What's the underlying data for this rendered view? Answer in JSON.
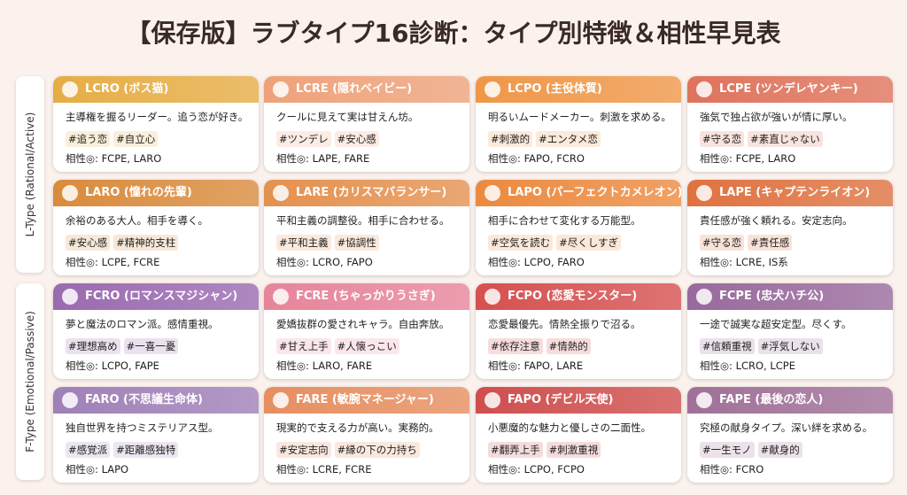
{
  "title": "【保存版】ラブタイプ16診断：タイプ別特徴＆相性早見表",
  "groups": [
    {
      "label": "L-Type (Rational/Active)"
    },
    {
      "label": "F-Type (Emotional/Passive)"
    }
  ],
  "cards": [
    {
      "header": "LCRO (ボス猫)",
      "description": "主導権を握るリーダー。追う恋が好き。",
      "tags": [
        "#追う恋",
        "#自立心"
      ],
      "compat": "相性◎: FCPE, LARO",
      "color": "#e6ad45"
    },
    {
      "header": "LCRE (隠れベイビー)",
      "description": "クールに見えて実は甘えん坊。",
      "tags": [
        "#ツンデレ",
        "#安心感"
      ],
      "compat": "相性◎: LAPE, FARE",
      "color": "#eea27a"
    },
    {
      "header": "LCPO (主役体質)",
      "description": "明るいムードメーカー。刺激を求める。",
      "tags": [
        "#刺激的",
        "#エンタメ恋"
      ],
      "compat": "相性◎: FAPO, FCRO",
      "color": "#ef9748"
    },
    {
      "header": "LCPE (ツンデレヤンキー)",
      "description": "強気で独占欲が強いが情に厚い。",
      "tags": [
        "#守る恋",
        "#素直じゃない"
      ],
      "compat": "相性◎: FCPE, LARO",
      "color": "#df735c"
    },
    {
      "header": "LARO (憧れの先輩)",
      "description": "余裕のある大人。相手を導く。",
      "tags": [
        "#安心感",
        "#精神的支柱"
      ],
      "compat": "相性◎: LCPE, FCRE",
      "color": "#d98b3c"
    },
    {
      "header": "LARE (カリスマバランサー)",
      "description": "平和主義の調整役。相手に合わせる。",
      "tags": [
        "#平和主義",
        "#協調性"
      ],
      "compat": "相性◎: LCRO, FAPO",
      "color": "#e4914f"
    },
    {
      "header": "LAPO (パーフェクトカメレオン)",
      "description": "相手に合わせて変化する万能型。",
      "tags": [
        "#空気を読む",
        "#尽くしすぎ"
      ],
      "compat": "相性◎: LCPO, FARO",
      "color": "#ec8a3f"
    },
    {
      "header": "LAPE (キャプテンライオン)",
      "description": "責任感が強く頼れる。安定志向。",
      "tags": [
        "#守る恋",
        "#責任感"
      ],
      "compat": "相性◎: LCRE, IS系",
      "color": "#df7240"
    },
    {
      "header": "FCRO (ロマンスマジシャン)",
      "description": "夢と魔法のロマン派。感情重視。",
      "tags": [
        "#理想高め",
        "#一喜一憂"
      ],
      "compat": "相性◎: LCPO, FAPE",
      "color": "#9a6ab0"
    },
    {
      "header": "FCRE (ちゃっかりうさぎ)",
      "description": "愛嬌抜群の愛されキャラ。自由奔放。",
      "tags": [
        "#甘え上手",
        "#人懐っこい"
      ],
      "compat": "相性◎: LARO, FARE",
      "color": "#e7849a"
    },
    {
      "header": "FCPO (恋愛モンスター)",
      "description": "恋愛最優先。情熱全振りで沼る。",
      "tags": [
        "#依存注意",
        "#情熱的"
      ],
      "compat": "相性◎: FAPO, LARE",
      "color": "#d65050"
    },
    {
      "header": "FCPE (忠犬ハチ公)",
      "description": "一途で誠実な超安定型。尽くす。",
      "tags": [
        "#信頼重視",
        "#浮気しない"
      ],
      "compat": "相性◎: LCRO, LCPE",
      "color": "#986a9c"
    },
    {
      "header": "FARO (不思議生命体)",
      "description": "独自世界を持つミステリアス型。",
      "tags": [
        "#感覚派",
        "#距離感独特"
      ],
      "compat": "相性◎: LAPO",
      "color": "#9f80b8"
    },
    {
      "header": "FARE (敏腕マネージャー)",
      "description": "現実的で支える力が高い。実務的。",
      "tags": [
        "#安定志向",
        "#縁の下の力持ち"
      ],
      "compat": "相性◎: LCRE, FCRE",
      "color": "#e68e60"
    },
    {
      "header": "FAPO (デビル天使)",
      "description": "小悪魔的な魅力と優しさの二面性。",
      "tags": [
        "#翻弄上手",
        "#刺激重視"
      ],
      "compat": "相性◎: LCPO, FCPO",
      "color": "#cf4e4e"
    },
    {
      "header": "FAPE (最後の恋人)",
      "description": "究極の献身タイプ。深い絆を求める。",
      "tags": [
        "#一生モノ",
        "#献身的"
      ],
      "compat": "相性◎: FCRO",
      "color": "#a07098"
    }
  ]
}
